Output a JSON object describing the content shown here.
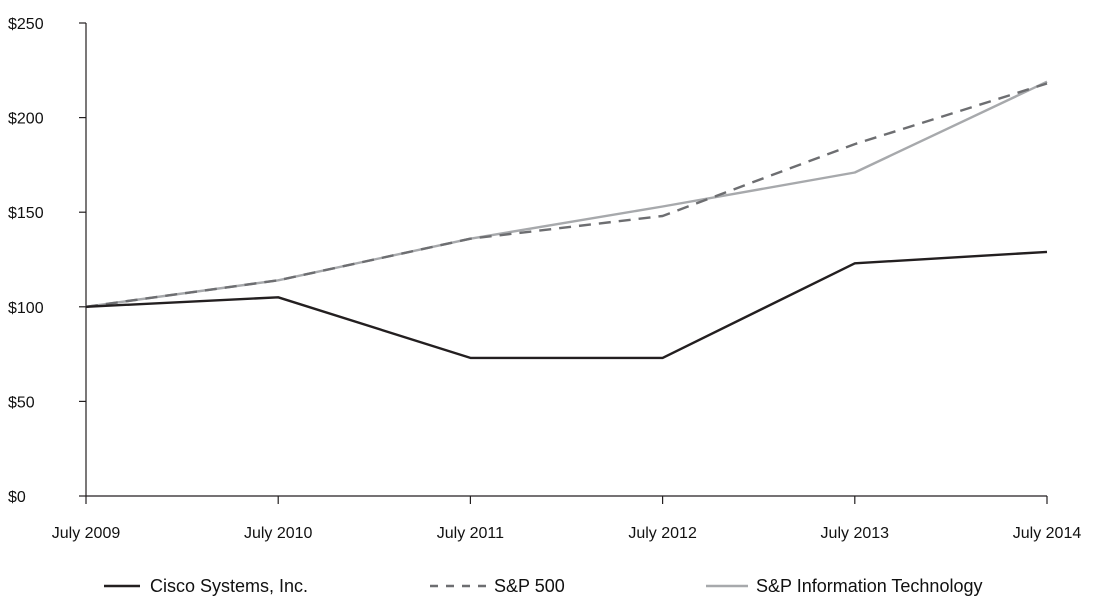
{
  "chart_data": {
    "type": "line",
    "title": "",
    "xlabel": "",
    "ylabel": "",
    "categories": [
      "July 2009",
      "July 2010",
      "July 2011",
      "July 2012",
      "July 2013",
      "July 2014"
    ],
    "yticks": [
      "$0",
      "$50",
      "$100",
      "$150",
      "$200",
      "$250"
    ],
    "ylim": [
      0,
      250
    ],
    "grid": false,
    "legend_position": "bottom",
    "series": [
      {
        "name": "Cisco Systems, Inc.",
        "values": [
          100,
          105,
          73,
          73,
          123,
          129
        ],
        "style": "solid",
        "color": "#231f20"
      },
      {
        "name": "S&P 500",
        "values": [
          100,
          114,
          136,
          148,
          186,
          218
        ],
        "style": "dashed",
        "color": "#6d6e71"
      },
      {
        "name": "S&P Information Technology",
        "values": [
          100,
          114,
          136,
          153,
          171,
          219
        ],
        "style": "solid",
        "color": "#a7a9ac"
      }
    ]
  }
}
